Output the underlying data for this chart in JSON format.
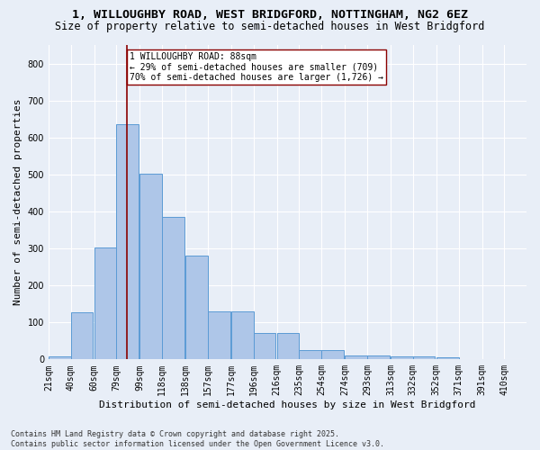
{
  "title_line1": "1, WILLOUGHBY ROAD, WEST BRIDGFORD, NOTTINGHAM, NG2 6EZ",
  "title_line2": "Size of property relative to semi-detached houses in West Bridgford",
  "xlabel": "Distribution of semi-detached houses by size in West Bridgford",
  "ylabel": "Number of semi-detached properties",
  "footnote": "Contains HM Land Registry data © Crown copyright and database right 2025.\nContains public sector information licensed under the Open Government Licence v3.0.",
  "bin_labels": [
    "21sqm",
    "40sqm",
    "60sqm",
    "79sqm",
    "99sqm",
    "118sqm",
    "138sqm",
    "157sqm",
    "177sqm",
    "196sqm",
    "216sqm",
    "235sqm",
    "254sqm",
    "274sqm",
    "293sqm",
    "313sqm",
    "332sqm",
    "352sqm",
    "371sqm",
    "391sqm",
    "410sqm"
  ],
  "bin_edges": [
    21,
    40,
    60,
    79,
    99,
    118,
    138,
    157,
    177,
    196,
    216,
    235,
    254,
    274,
    293,
    313,
    332,
    352,
    371,
    391,
    410
  ],
  "bar_heights": [
    8,
    128,
    302,
    636,
    502,
    385,
    280,
    130,
    130,
    72,
    72,
    25,
    25,
    10,
    10,
    7,
    7,
    5,
    0,
    0,
    0
  ],
  "bar_color": "#aec6e8",
  "bar_edge_color": "#5b9bd5",
  "property_size": 88,
  "vline_color": "#8b0000",
  "annotation_text": "1 WILLOUGHBY ROAD: 88sqm\n← 29% of semi-detached houses are smaller (709)\n70% of semi-detached houses are larger (1,726) →",
  "annotation_box_color": "#ffffff",
  "annotation_box_edge": "#8b0000",
  "ylim": [
    0,
    850
  ],
  "yticks": [
    0,
    100,
    200,
    300,
    400,
    500,
    600,
    700,
    800
  ],
  "background_color": "#e8eef7",
  "plot_background": "#e8eef7",
  "grid_color": "#ffffff",
  "title_fontsize": 9.5,
  "subtitle_fontsize": 8.5,
  "axis_label_fontsize": 8,
  "tick_fontsize": 7,
  "footnote_fontsize": 6
}
